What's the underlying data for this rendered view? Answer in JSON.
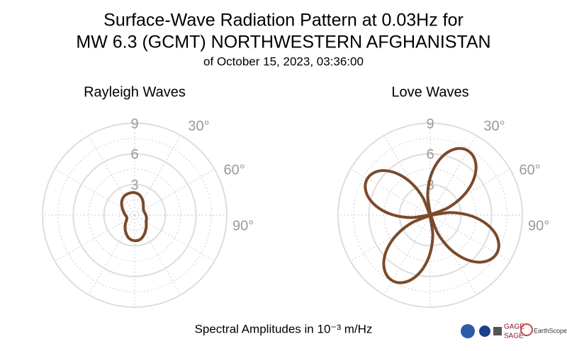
{
  "header": {
    "title_lines": [
      "Surface-Wave Radiation Pattern at 0.03Hz for",
      "MW 6.3 (GCMT) NORTHWESTERN AFGHANISTAN"
    ],
    "subtitle": "of October 15, 2023, 03:36:00",
    "caption": "Spectral Amplitudes in 10⁻³ m/Hz",
    "logos": [
      "GAGE",
      "SAGE",
      "EarthScope"
    ]
  },
  "chart_data": [
    {
      "type": "polar",
      "title": "Rayleigh Waves",
      "color": "#7a4a2a",
      "theta": [
        0,
        15,
        30,
        45,
        60,
        75,
        90,
        105,
        120,
        135,
        150,
        165,
        180,
        195,
        210,
        225,
        240,
        255,
        270,
        285,
        300,
        315,
        330,
        345
      ],
      "values": [
        2.2,
        2.0,
        1.6,
        1.2,
        1.0,
        1.0,
        1.1,
        1.2,
        1.3,
        1.6,
        2.0,
        2.4,
        2.5,
        2.3,
        1.8,
        1.3,
        0.9,
        0.8,
        0.9,
        1.1,
        1.4,
        1.8,
        2.1,
        2.2
      ],
      "rlim": [
        0,
        9
      ],
      "rticks": [
        3,
        6,
        9
      ],
      "thetaticks": [
        {
          "value": 30,
          "label": "30°"
        },
        {
          "value": 60,
          "label": "60°"
        },
        {
          "value": 90,
          "label": "90°"
        }
      ]
    },
    {
      "type": "polar",
      "title": "Love Waves",
      "color": "#7a4a2a",
      "theta": [
        0,
        7.5,
        15,
        22.5,
        30,
        37.5,
        45,
        52.5,
        60,
        67.5,
        75,
        82.5,
        90,
        97.5,
        105,
        112.5,
        120,
        127.5,
        135,
        142.5,
        150,
        157.5,
        165,
        172.5,
        180,
        187.5,
        195,
        202.5,
        210,
        217.5,
        225,
        232.5,
        240,
        247.5,
        255,
        262.5,
        270,
        277.5,
        285,
        292.5,
        300,
        307.5,
        315,
        322.5,
        330,
        337.5,
        345,
        352.5
      ],
      "values": [
        3.65,
        5.16,
        6.32,
        7.05,
        7.3,
        7.05,
        6.32,
        5.16,
        3.65,
        1.89,
        0,
        1.94,
        3.75,
        5.3,
        6.5,
        7.24,
        7.5,
        7.24,
        6.5,
        5.3,
        3.75,
        1.94,
        0,
        1.92,
        3.7,
        5.23,
        6.41,
        7.15,
        7.4,
        7.15,
        6.41,
        5.23,
        3.7,
        1.92,
        0,
        1.84,
        3.55,
        5.02,
        6.15,
        6.86,
        7.1,
        6.86,
        6.15,
        5.02,
        3.55,
        1.84,
        0,
        1.89
      ],
      "rlim": [
        0,
        9
      ],
      "rticks": [
        3,
        6,
        9
      ],
      "thetaticks": [
        {
          "value": 30,
          "label": "30°"
        },
        {
          "value": 60,
          "label": "60°"
        },
        {
          "value": 90,
          "label": "90°"
        }
      ]
    }
  ]
}
